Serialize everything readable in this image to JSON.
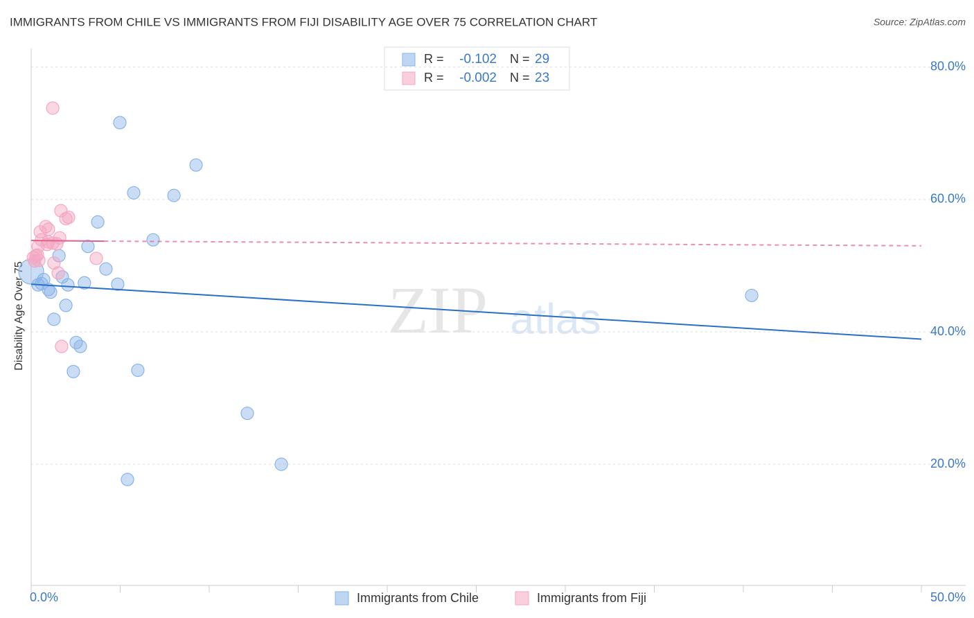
{
  "chart_data": {
    "type": "scatter",
    "title": "IMMIGRANTS FROM CHILE VS IMMIGRANTS FROM FIJI DISABILITY AGE OVER 75 CORRELATION CHART",
    "source": "Source: ZipAtlas.com",
    "y_label": "Disability Age Over 75",
    "watermark": [
      "ZIP",
      "atlas"
    ],
    "xlim": [
      0,
      50
    ],
    "ylim": [
      1.7,
      82.8
    ],
    "xticks": [
      {
        "value": 0,
        "label": "0.0%"
      },
      {
        "value": 50,
        "label": "50.0%"
      }
    ],
    "x_minor_ticks": [
      5,
      10,
      15,
      20,
      25,
      30,
      35,
      40,
      45
    ],
    "yticks": [
      {
        "value": 20,
        "label": "20.0%"
      },
      {
        "value": 40,
        "label": "40.0%"
      },
      {
        "value": 60,
        "label": "60.0%"
      },
      {
        "value": 80,
        "label": "80.0%"
      }
    ],
    "grid": true,
    "legend_position": "top",
    "series": [
      {
        "name": "Immigrants from Chile",
        "color": "#8ab4e8",
        "line_color": "#2a6fc9",
        "stats": {
          "r_label": "R =",
          "r": "-0.102",
          "n_label": "N =",
          "n": "29"
        },
        "x": [
          4.98,
          9.26,
          5.76,
          8.02,
          3.74,
          6.85,
          3.19,
          1.56,
          4.2,
          1.75,
          2.99,
          4.86,
          2.06,
          0.39,
          0.58,
          0.97,
          1.09,
          1.95,
          1.28,
          2.53,
          2.76,
          2.37,
          5.99,
          12.14,
          14.05,
          5.41,
          40.47,
          0,
          0.7
        ],
        "values": [
          71.6,
          65.2,
          61.0,
          60.6,
          56.6,
          53.9,
          52.9,
          51.5,
          49.5,
          48.3,
          47.4,
          47.2,
          47.1,
          47.1,
          47.3,
          46.4,
          46.0,
          44.0,
          41.9,
          38.4,
          37.8,
          34.0,
          34.2,
          27.7,
          20.0,
          17.7,
          45.5,
          49.1,
          47.9
        ],
        "trend": {
          "x": [
            0,
            50
          ],
          "y": [
            47.2,
            38.9
          ]
        }
      },
      {
        "name": "Immigrants from Fiji",
        "color": "#f4a7c0",
        "line_color": "#e0608e",
        "stats": {
          "r_label": "R =",
          "r": "-0.002",
          "n_label": "N =",
          "n": "23"
        },
        "x": [
          1.21,
          1.67,
          2.1,
          1.95,
          0.82,
          0.97,
          0.51,
          1.6,
          0.58,
          0.97,
          1.21,
          1.44,
          0.39,
          3.66,
          0.27,
          0.12,
          0.43,
          1.28,
          1.52,
          1.71,
          0.35,
          0.89,
          0.19
        ],
        "values": [
          73.8,
          58.3,
          57.3,
          57.1,
          55.9,
          55.5,
          55.1,
          54.2,
          53.9,
          53.6,
          53.4,
          53.3,
          52.9,
          51.1,
          51.5,
          51.2,
          50.8,
          50.4,
          48.9,
          37.8,
          51.6,
          53.2,
          50.7
        ],
        "trend": {
          "x": [
            0,
            4.1,
            50
          ],
          "y": [
            53.8,
            53.7,
            53.0
          ]
        }
      }
    ]
  }
}
